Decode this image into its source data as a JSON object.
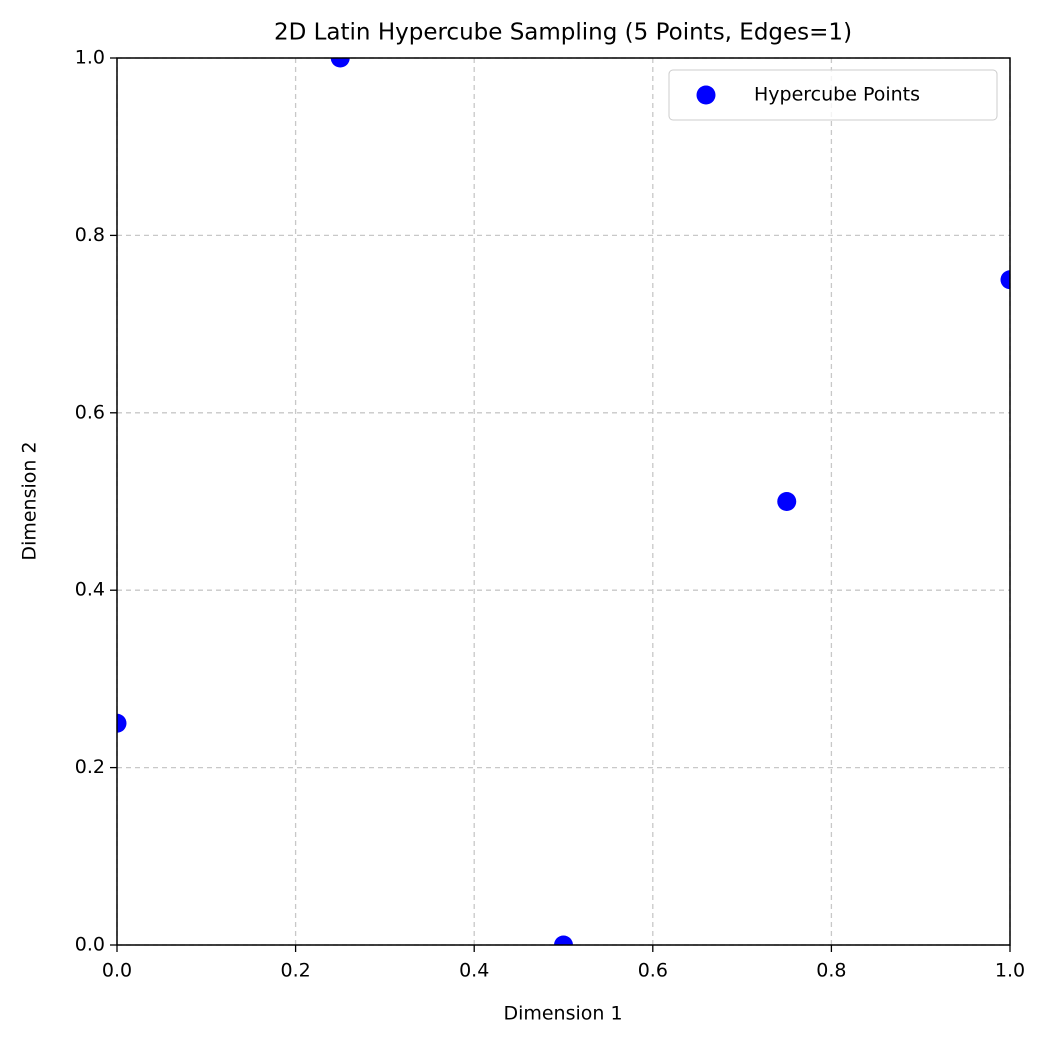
{
  "chart_data": {
    "type": "scatter",
    "title": "2D Latin Hypercube Sampling (5 Points, Edges=1)",
    "x_label": "Dimension 1",
    "y_label": "Dimension 2",
    "series": [
      {
        "name": "Hypercube Points",
        "color": "#0000ff",
        "x": [
          0,
          0.25,
          0.5,
          0.75,
          1
        ],
        "values": [
          0.25,
          1,
          0,
          0.5,
          0.75
        ]
      }
    ],
    "xlim": [
      0,
      1
    ],
    "ylim": [
      0,
      1
    ],
    "xticks": [
      {
        "value": 0,
        "label": "0.0"
      },
      0.2,
      0.4,
      0.6,
      0.8,
      {
        "value": 1,
        "label": "1.0"
      }
    ],
    "yticks": [
      {
        "value": 0,
        "label": "0.0"
      },
      0.2,
      0.4,
      0.6,
      0.8,
      {
        "value": 1,
        "label": "1.0"
      }
    ],
    "grid": true,
    "legend_position": "upper right"
  }
}
